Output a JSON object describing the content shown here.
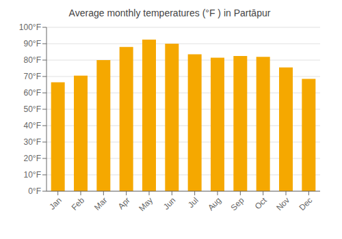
{
  "chart_data": {
    "type": "bar",
    "title": "Average monthly temperatures (°F ) in Partāpur",
    "categories": [
      "Jan",
      "Feb",
      "Mar",
      "Apr",
      "May",
      "Jun",
      "Jul",
      "Aug",
      "Sep",
      "Oct",
      "Nov",
      "Dec"
    ],
    "values": [
      66.5,
      70.5,
      80.0,
      88.0,
      92.5,
      90.0,
      83.5,
      81.5,
      82.5,
      82.0,
      75.5,
      68.5
    ],
    "color": "#F5A800",
    "ylim": [
      0,
      100
    ],
    "yticks": [
      {
        "value": 0,
        "label": "0°F"
      },
      {
        "value": 10,
        "label": "10°F"
      },
      {
        "value": 20,
        "label": "20°F"
      },
      {
        "value": 30,
        "label": "30°F"
      },
      {
        "value": 40,
        "label": "40°F"
      },
      {
        "value": 50,
        "label": "50°F"
      },
      {
        "value": 60,
        "label": "60°F"
      },
      {
        "value": 70,
        "label": "70°F"
      },
      {
        "value": 80,
        "label": "80°F"
      },
      {
        "value": 90,
        "label": "90°F"
      },
      {
        "value": 100,
        "label": "100°F"
      }
    ],
    "grid": true
  }
}
